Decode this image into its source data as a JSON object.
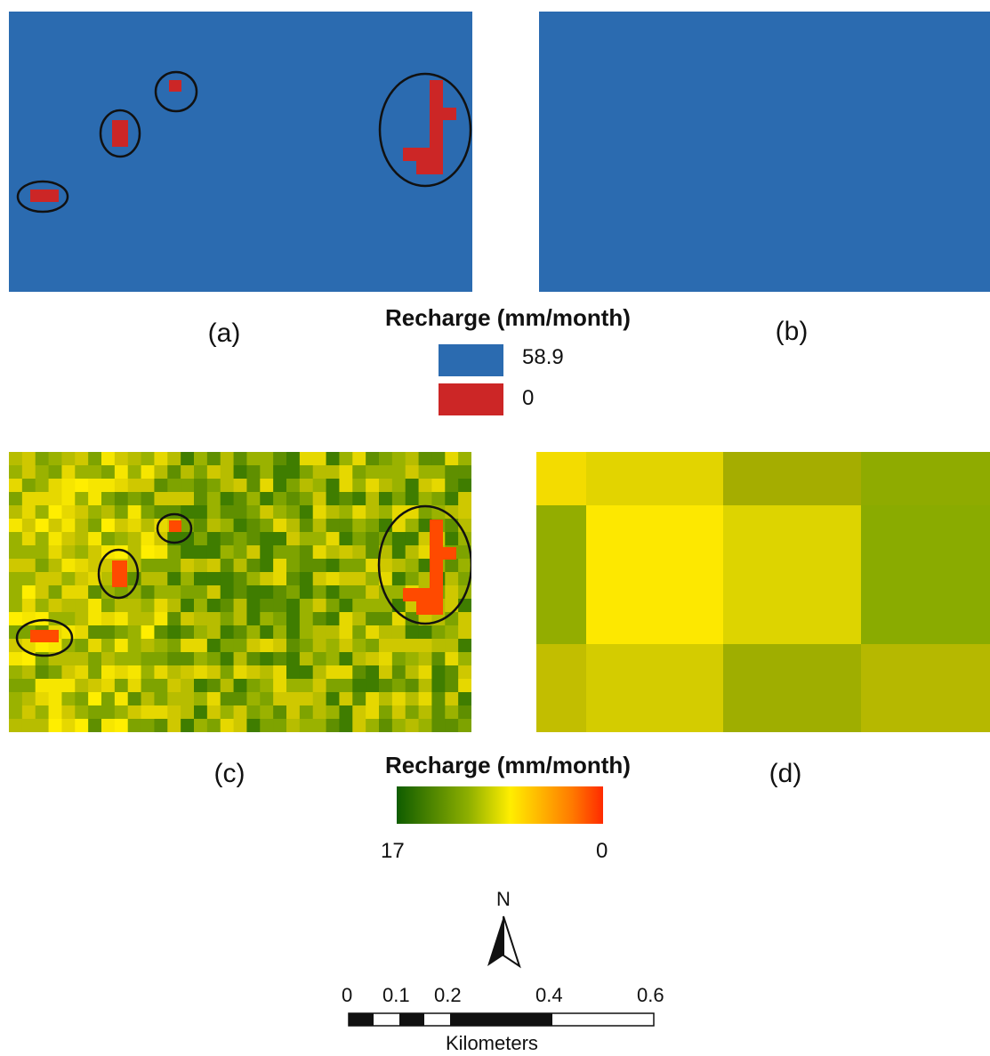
{
  "panels": {
    "a": {
      "label": "(a)"
    },
    "b": {
      "label": "(b)"
    },
    "c": {
      "label": "(c)"
    },
    "d": {
      "label": "(d)"
    }
  },
  "legend_top": {
    "title": "Recharge (mm/month)",
    "items": [
      {
        "label": "58.9",
        "color": "#2b6bb0"
      },
      {
        "label": "0",
        "color": "#cc2626"
      }
    ]
  },
  "legend_bottom": {
    "title": "Recharge (mm/month)",
    "min_label": "17",
    "max_label": "0",
    "ramp_colors": [
      "#0f5c00",
      "#8fb000",
      "#ffee00",
      "#ff7a00",
      "#ff2a00"
    ]
  },
  "north_arrow": {
    "label": "N"
  },
  "scale_bar": {
    "ticks": [
      "0",
      "0.1",
      "0.2",
      "0.4",
      "0.6"
    ],
    "unit": "Kilometers"
  },
  "colors": {
    "recharge_high": "#2b6bb0",
    "recharge_zero": "#cc2626",
    "recharge_zero_continuous": "#ff4a00",
    "outline": "#111111"
  }
}
